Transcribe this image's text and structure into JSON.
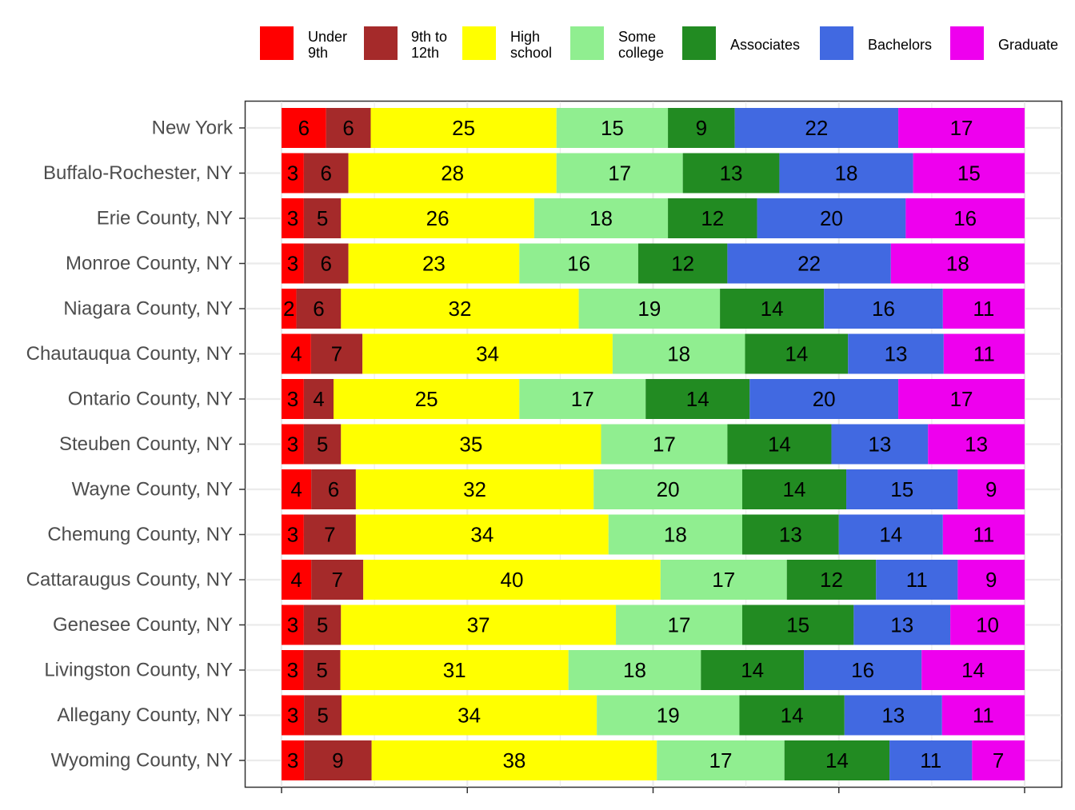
{
  "chart_data": {
    "type": "bar",
    "orientation": "horizontal",
    "stacked": true,
    "normalized": true,
    "title": "",
    "xlabel": "",
    "ylabel": "",
    "xlim": [
      0,
      100
    ],
    "grid": true,
    "legend_position": "top-right",
    "categories": [
      "New York",
      "Buffalo-Rochester, NY",
      "Erie County, NY",
      "Monroe County, NY",
      "Niagara County, NY",
      "Chautauqua County, NY",
      "Ontario County, NY",
      "Steuben County, NY",
      "Wayne County, NY",
      "Chemung County, NY",
      "Cattaraugus County, NY",
      "Genesee County, NY",
      "Livingston County, NY",
      "Allegany County, NY",
      "Wyoming County, NY"
    ],
    "series": [
      {
        "name": "Under 9th",
        "legend_lines": [
          "Under",
          "9th"
        ],
        "color": "#ff0000",
        "values": [
          6,
          3,
          3,
          3,
          2,
          4,
          3,
          3,
          4,
          3,
          4,
          3,
          3,
          3,
          3
        ]
      },
      {
        "name": "9th to 12th",
        "legend_lines": [
          "9th to",
          "12th"
        ],
        "color": "#a52a2a",
        "values": [
          6,
          6,
          5,
          6,
          6,
          7,
          4,
          5,
          6,
          7,
          7,
          5,
          5,
          5,
          9
        ]
      },
      {
        "name": "High school",
        "legend_lines": [
          "High",
          "school"
        ],
        "color": "#ffff00",
        "values": [
          25,
          28,
          26,
          23,
          32,
          34,
          25,
          35,
          32,
          34,
          40,
          37,
          31,
          34,
          38
        ]
      },
      {
        "name": "Some college",
        "legend_lines": [
          "Some",
          "college"
        ],
        "color": "#90ee90",
        "values": [
          15,
          17,
          18,
          16,
          19,
          18,
          17,
          17,
          20,
          18,
          17,
          17,
          18,
          19,
          17
        ]
      },
      {
        "name": "Associates",
        "legend_lines": [
          "Associates"
        ],
        "color": "#228b22",
        "values": [
          9,
          13,
          12,
          12,
          14,
          14,
          14,
          14,
          14,
          13,
          12,
          15,
          14,
          14,
          14
        ]
      },
      {
        "name": "Bachelors",
        "legend_lines": [
          "Bachelors"
        ],
        "color": "#4169e1",
        "values": [
          22,
          18,
          20,
          22,
          16,
          13,
          20,
          13,
          15,
          14,
          11,
          13,
          16,
          13,
          11
        ]
      },
      {
        "name": "Graduate",
        "legend_lines": [
          "Graduate"
        ],
        "color": "#ee00ee",
        "values": [
          17,
          15,
          16,
          18,
          11,
          11,
          17,
          13,
          9,
          11,
          9,
          10,
          14,
          11,
          7
        ]
      }
    ]
  }
}
